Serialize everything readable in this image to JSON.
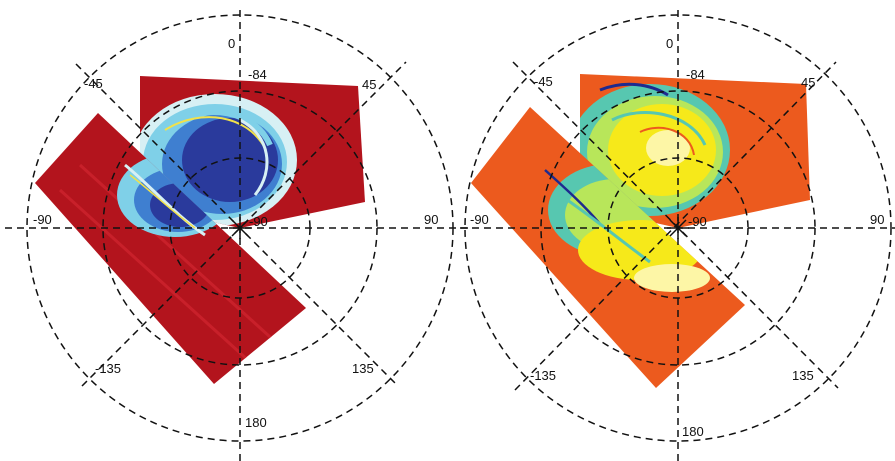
{
  "figure": {
    "panels": [
      {
        "id": "left",
        "labels": {
          "lon_0": "0",
          "lon_45": "45",
          "lon_90": "90",
          "lon_135": "135",
          "lon_180": "180",
          "lon_m135": "-135",
          "lon_m90": "-90",
          "lon_m45": "-45",
          "lat_84": "-84",
          "lat_90": "-90"
        },
        "palette": {
          "background": "#b3141d",
          "stripe": "#c8202a",
          "core": "#2a3a9c",
          "mid": "#3f7fd0",
          "light": "#7fd0e8",
          "pale": "#d7f0f4",
          "highlight": "#f2e24a"
        }
      },
      {
        "id": "right",
        "labels": {
          "lon_0": "0",
          "lon_45": "45",
          "lon_90": "90",
          "lon_135": "135",
          "lon_180": "180",
          "lon_m135": "-135",
          "lon_m90": "-90",
          "lon_m45": "-45",
          "lat_84": "-84",
          "lat_90": "-90"
        },
        "palette": {
          "background": "#ec5a1e",
          "stripe": "#f07a25",
          "core": "#f6e91a",
          "mid": "#b8e65a",
          "light": "#57c7b0",
          "pale": "#fdf6a6",
          "highlight": "#1e2a8f"
        }
      }
    ]
  }
}
